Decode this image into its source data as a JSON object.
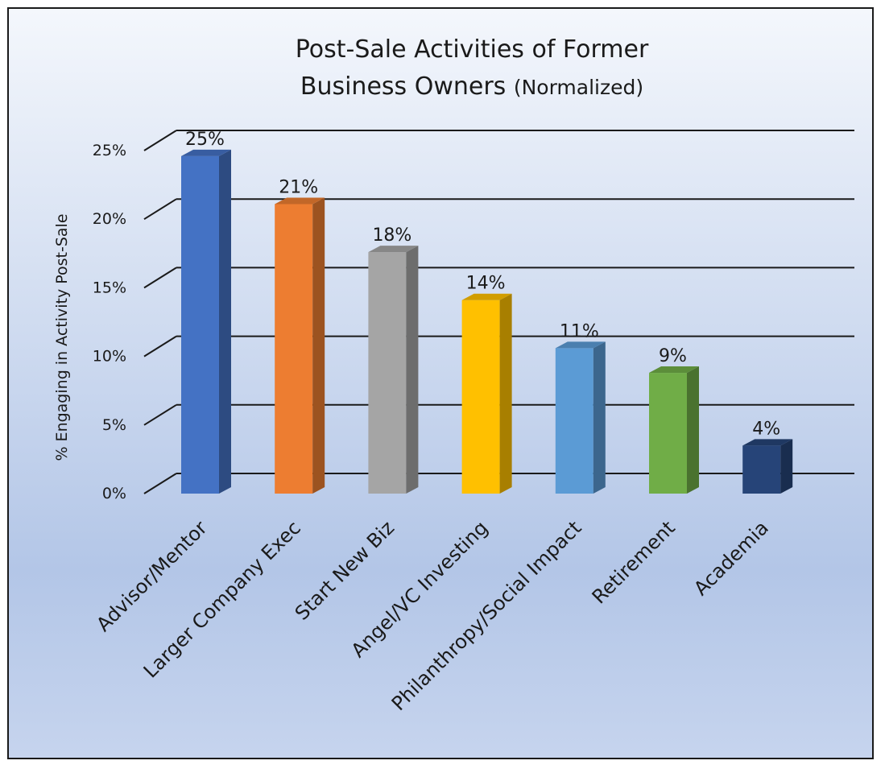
{
  "chart_data": {
    "type": "bar",
    "title_line1": "Post-Sale Activities of Former",
    "title_line2_main": "Business Owners",
    "title_line2_note": "(Normalized)",
    "ylabel": "% Engaging in Activity Post-Sale",
    "xlabel": "",
    "ylim": [
      0,
      25
    ],
    "yticks": [
      "0%",
      "5%",
      "10%",
      "15%",
      "20%",
      "25%"
    ],
    "ytick_values": [
      0,
      5,
      10,
      15,
      20,
      25
    ],
    "categories": [
      "Advisor/Mentor",
      "Larger Company Exec",
      "Start New Biz",
      "Angel/VC Investing",
      "Philanthropy/Social Impact",
      "Retirement",
      "Academia"
    ],
    "values": [
      24.6,
      21.1,
      17.6,
      14.1,
      10.6,
      8.8,
      3.5
    ],
    "value_labels": [
      "25%",
      "21%",
      "18%",
      "14%",
      "11%",
      "9%",
      "4%"
    ],
    "colors": [
      "#4472C4",
      "#ED7D31",
      "#A5A5A5",
      "#FFC000",
      "#5B9BD5",
      "#70AD47",
      "#264478"
    ],
    "grid": true,
    "legend": "none",
    "style": "3d-column"
  }
}
